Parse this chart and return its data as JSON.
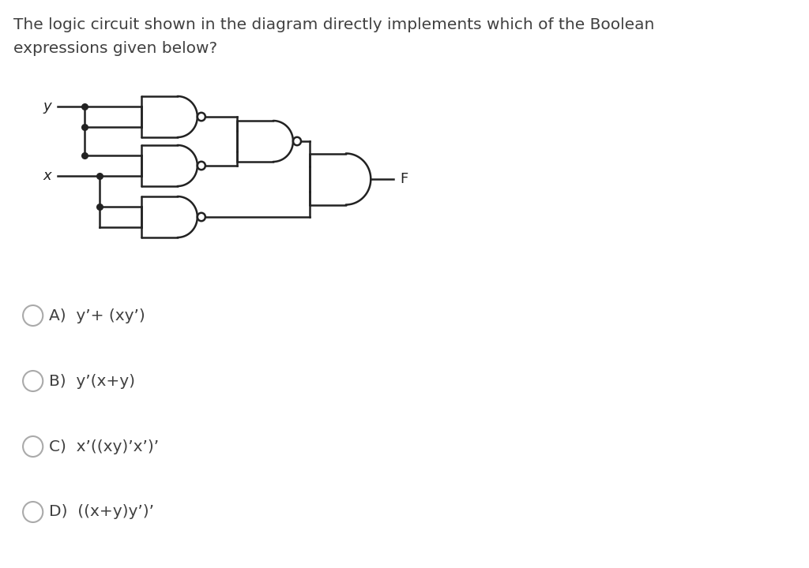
{
  "title_line1": "The logic circuit shown in the diagram directly implements which of the Boolean",
  "title_line2": "expressions given below?",
  "title_fontsize": 14.5,
  "background_color": "#ffffff",
  "text_color": "#404040",
  "line_color": "#222222",
  "line_width": 1.8,
  "choices": [
    [
      "A)",
      "y’+ (xy’)"
    ],
    [
      "B)",
      "y’(x+y)"
    ],
    [
      "C)",
      "x’((xy)’x’)’"
    ],
    [
      "D)",
      "((x+y)y’)’"
    ]
  ],
  "output_label": "F"
}
